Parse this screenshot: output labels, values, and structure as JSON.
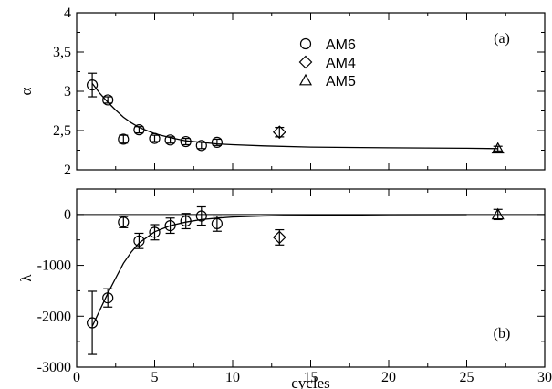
{
  "chart_data": [
    {
      "panel": "(a)",
      "type": "scatter",
      "xlabel": "",
      "ylabel": "α",
      "xlim": [
        0,
        30
      ],
      "ylim": [
        2,
        4
      ],
      "xticks": [
        0,
        5,
        10,
        15,
        20,
        25,
        30
      ],
      "yticks": [
        2,
        2.5,
        3,
        3.5,
        4
      ],
      "ytick_labels": [
        "2",
        "2,5",
        "3",
        "3,5",
        "4"
      ],
      "legend_position": "top-right",
      "series": [
        {
          "name": "AM6",
          "marker": "circle",
          "points": [
            {
              "x": 1,
              "y": 3.08,
              "err": 0.15
            },
            {
              "x": 2,
              "y": 2.89,
              "err": 0.04
            },
            {
              "x": 3,
              "y": 2.39,
              "err": 0.05
            },
            {
              "x": 4,
              "y": 2.51,
              "err": 0.04
            },
            {
              "x": 5,
              "y": 2.4,
              "err": 0.04
            },
            {
              "x": 6,
              "y": 2.38,
              "err": 0.04
            },
            {
              "x": 7,
              "y": 2.36,
              "err": 0.04
            },
            {
              "x": 8,
              "y": 2.31,
              "err": 0.04
            },
            {
              "x": 9,
              "y": 2.35,
              "err": 0.04
            }
          ]
        },
        {
          "name": "AM4",
          "marker": "diamond",
          "points": [
            {
              "x": 13,
              "y": 2.48,
              "err": 0.06
            }
          ]
        },
        {
          "name": "AM5",
          "marker": "triangle",
          "points": [
            {
              "x": 27,
              "y": 2.27,
              "err": 0.03
            }
          ]
        }
      ],
      "fit_curve": {
        "x": [
          1,
          1.5,
          2,
          2.5,
          3,
          3.5,
          4,
          5,
          6,
          7,
          8,
          9,
          10,
          12,
          15,
          20,
          25,
          27
        ],
        "y": [
          3.1,
          2.97,
          2.86,
          2.76,
          2.67,
          2.6,
          2.54,
          2.46,
          2.41,
          2.37,
          2.35,
          2.33,
          2.32,
          2.305,
          2.29,
          2.28,
          2.275,
          2.27
        ]
      }
    },
    {
      "panel": "(b)",
      "type": "scatter",
      "xlabel": "cycles",
      "ylabel": "λ",
      "xlim": [
        0,
        30
      ],
      "ylim": [
        -3000,
        500
      ],
      "xticks": [
        0,
        5,
        10,
        15,
        20,
        25,
        30
      ],
      "yticks": [
        -3000,
        -2000,
        -1000,
        0
      ],
      "ytick_labels": [
        "-3000",
        "-2000",
        "-1000",
        "0"
      ],
      "zero_line": true,
      "series": [
        {
          "name": "AM6",
          "marker": "circle",
          "points": [
            {
              "x": 1,
              "y": -2130,
              "err": 620
            },
            {
              "x": 2,
              "y": -1640,
              "err": 180
            },
            {
              "x": 3,
              "y": -150,
              "err": 110
            },
            {
              "x": 4,
              "y": -520,
              "err": 150
            },
            {
              "x": 5,
              "y": -350,
              "err": 150
            },
            {
              "x": 6,
              "y": -220,
              "err": 150
            },
            {
              "x": 7,
              "y": -130,
              "err": 150
            },
            {
              "x": 8,
              "y": -30,
              "err": 180
            },
            {
              "x": 9,
              "y": -180,
              "err": 150
            }
          ]
        },
        {
          "name": "AM4",
          "marker": "diamond",
          "points": [
            {
              "x": 13,
              "y": -450,
              "err": 150
            }
          ]
        },
        {
          "name": "AM5",
          "marker": "triangle",
          "points": [
            {
              "x": 27,
              "y": 0,
              "err": 100
            }
          ]
        }
      ],
      "fit_curve": {
        "x": [
          1,
          1.5,
          2,
          2.5,
          3,
          3.5,
          4,
          5,
          6,
          7,
          8,
          9,
          10,
          12,
          15,
          20,
          25
        ],
        "y": [
          -2200,
          -1870,
          -1550,
          -1250,
          -960,
          -740,
          -560,
          -340,
          -220,
          -150,
          -100,
          -70,
          -50,
          -30,
          -15,
          -5,
          -2
        ]
      }
    }
  ]
}
